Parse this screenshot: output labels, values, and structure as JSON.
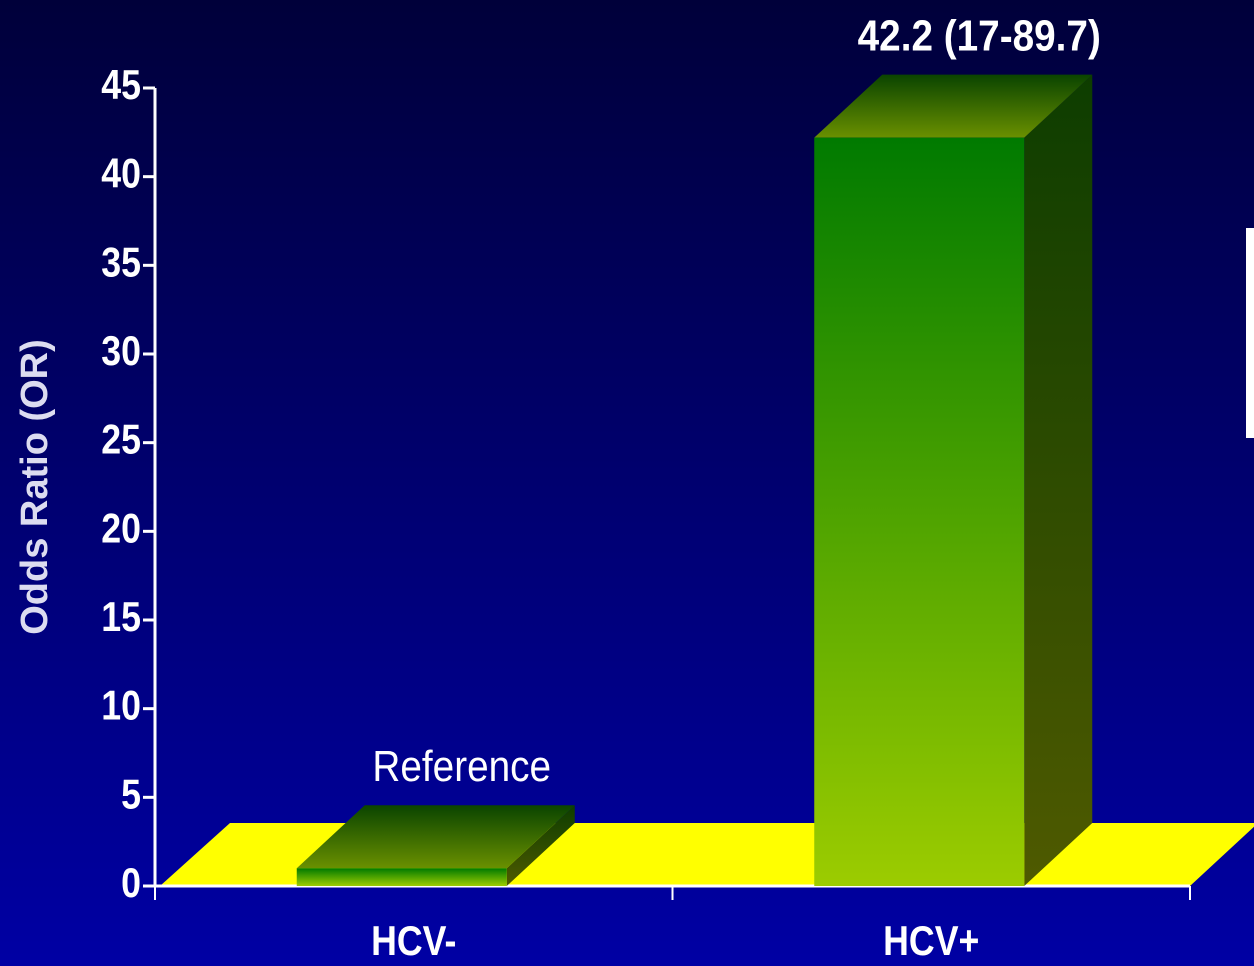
{
  "chart_data": {
    "type": "bar3d",
    "y_label": "Odds Ratio (OR)",
    "categories": [
      "HCV-",
      "HCV+"
    ],
    "values": [
      1,
      42.2
    ],
    "value_labels": [
      "Reference",
      "42.2 (17-89.7)"
    ],
    "color": "#66b000",
    "floor_color": "#ffff00",
    "ylim": [
      0,
      45
    ],
    "yticks": [
      0,
      5,
      10,
      15,
      20,
      25,
      30,
      35,
      40,
      45
    ]
  }
}
